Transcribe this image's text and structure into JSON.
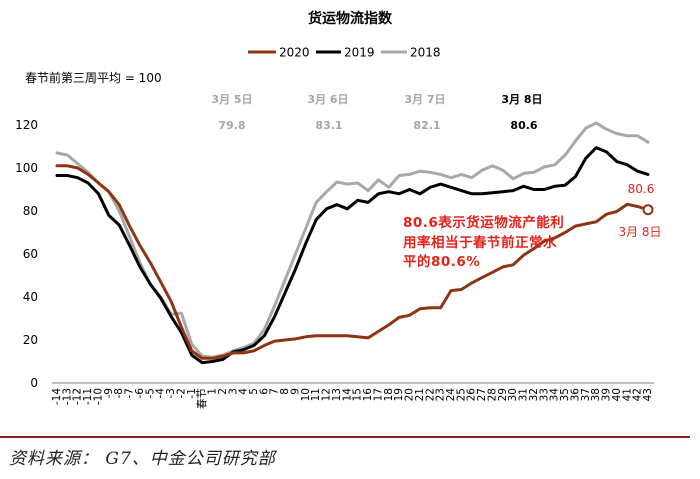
{
  "chart_data": {
    "type": "line",
    "title": "货运物流指数",
    "ylabel": "春节前第三周平均 = 100",
    "ylim": [
      0,
      120
    ],
    "yticks": [
      0,
      20,
      40,
      60,
      80,
      100,
      120
    ],
    "grid": false,
    "legend": "top-center",
    "x": [
      "-14",
      "-13",
      "-12",
      "-11",
      "-10",
      "-9",
      "-8",
      "-7",
      "-6",
      "-5",
      "-4",
      "-3",
      "-2",
      "-1",
      "春节",
      "1",
      "2",
      "3",
      "4",
      "5",
      "6",
      "7",
      "8",
      "9",
      "10",
      "11",
      "12",
      "13",
      "14",
      "15",
      "16",
      "17",
      "18",
      "19",
      "20",
      "21",
      "22",
      "23",
      "24",
      "25",
      "26",
      "27",
      "28",
      "29",
      "30",
      "31",
      "32",
      "33",
      "34",
      "35",
      "36",
      "37",
      "38",
      "39",
      "40",
      "41",
      "42",
      "43"
    ],
    "series": [
      {
        "name": "2020",
        "color": "#8c3512",
        "values": [
          101,
          101,
          100,
          97,
          93,
          89,
          83,
          73,
          64,
          56,
          47,
          38,
          26,
          15,
          11.5,
          11.5,
          12.5,
          14,
          14,
          15,
          17.5,
          19.5,
          20,
          20.5,
          21.5,
          22,
          22,
          22,
          22,
          21.5,
          21,
          24,
          27,
          30.5,
          31.5,
          34.5,
          35,
          35,
          43,
          43.5,
          46.5,
          49,
          51.5,
          54,
          55,
          59.5,
          62.5,
          66,
          67.5,
          70,
          73,
          74,
          75,
          78.5,
          79.8,
          83.1,
          82.1,
          80.6
        ]
      },
      {
        "name": "2019",
        "color": "#000000",
        "values": [
          96.5,
          96.5,
          95.5,
          93,
          88,
          78,
          73.5,
          64,
          54,
          46,
          39.5,
          31,
          23.5,
          13,
          9.5,
          10,
          11,
          14.5,
          15.5,
          17.5,
          22,
          31,
          42,
          53,
          65,
          76,
          81,
          83,
          81,
          85,
          84,
          88,
          89,
          88,
          90,
          88,
          91,
          92.5,
          91,
          89.5,
          88,
          88,
          88.5,
          89,
          89.5,
          91.5,
          90,
          90,
          91.5,
          92,
          96,
          104.5,
          109.5,
          107.5,
          103,
          101.5,
          98.5,
          97
        ]
      },
      {
        "name": "2018",
        "color": "#a8a8a8",
        "values": [
          107,
          106,
          102,
          98,
          93,
          89,
          80,
          68,
          56,
          46,
          40,
          32,
          32.5,
          18,
          12.5,
          12,
          13,
          15,
          16.5,
          18.5,
          25,
          36,
          48,
          60,
          72,
          84,
          89,
          93.5,
          92.5,
          93,
          89.5,
          94.5,
          91,
          96.5,
          97,
          98.5,
          98,
          97,
          95.5,
          97,
          95.5,
          99,
          101,
          99,
          95,
          97.5,
          98,
          100.5,
          101.5,
          106,
          112.5,
          118.5,
          121,
          118,
          116,
          115,
          115,
          112
        ]
      }
    ],
    "annotations": {
      "dates": [
        {
          "date": "3月 5日",
          "value": "79.8",
          "color": "#a6a6a6"
        },
        {
          "date": "3月 6日",
          "value": "83.1",
          "color": "#a6a6a6"
        },
        {
          "date": "3月 7日",
          "value": "82.1",
          "color": "#a6a6a6"
        },
        {
          "date": "3月 8日",
          "value": "80.6",
          "color": "#000000"
        }
      ],
      "note_lines": [
        "80.6表示货运物流产能利",
        "用率相当于春节前正常水",
        "平的80.6%"
      ],
      "note_color": "#e2231a",
      "end_value_label": "80.6",
      "end_date_label": "3月 8日"
    }
  },
  "source": "资料来源： G7、中金公司研究部"
}
